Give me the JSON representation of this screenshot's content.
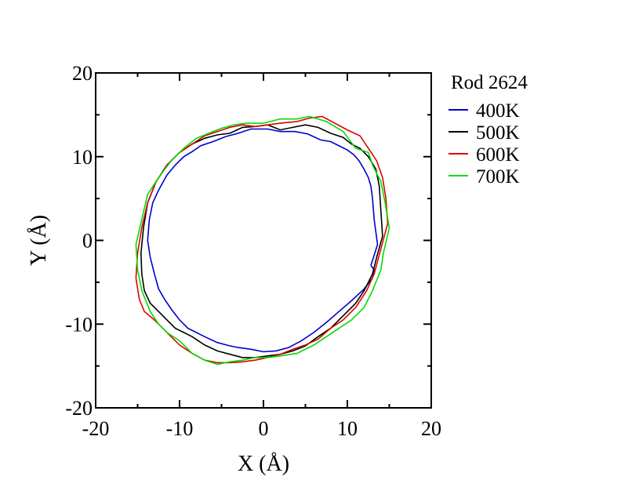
{
  "chart_data": {
    "type": "line",
    "title": "",
    "xlabel": "X (Å)",
    "ylabel": "Y (Å)",
    "xlim": [
      -20,
      20
    ],
    "ylim": [
      -20,
      20
    ],
    "xticks": [
      -20,
      -10,
      0,
      10,
      20
    ],
    "yticks": [
      -20,
      -10,
      0,
      10,
      20
    ],
    "grid": false,
    "legend": {
      "title": "Rod 2624",
      "placement": "outside-right"
    },
    "series": [
      {
        "name": "400K",
        "color": "#0000cc",
        "x": [
          12.8,
          13.6,
          13.2,
          13.0,
          12.8,
          12.5,
          12.0,
          11.4,
          10.8,
          10.0,
          9.0,
          8.0,
          6.8,
          5.3,
          3.8,
          2.0,
          0.5,
          -1.5,
          -3.0,
          -4.5,
          -6.0,
          -7.5,
          -8.5,
          -9.5,
          -10.5,
          -11.5,
          -12.5,
          -13.2,
          -13.6,
          -13.8,
          -13.5,
          -13.0,
          -12.5,
          -11.8,
          -11.0,
          -10.0,
          -9.0,
          -8.0,
          -7.0,
          -5.5,
          -4.0,
          -3.0,
          -1.5,
          0.0,
          1.5,
          3.0,
          4.5,
          6.0,
          7.5,
          9.0,
          10.5,
          12.0,
          13.0,
          13.2,
          12.8
        ],
        "y": [
          -3.0,
          -0.5,
          2.5,
          5.0,
          6.5,
          7.5,
          8.5,
          9.5,
          10.2,
          10.8,
          11.3,
          11.8,
          12.0,
          12.7,
          13.0,
          13.0,
          13.3,
          13.3,
          12.8,
          12.4,
          11.8,
          11.3,
          10.6,
          10.0,
          9.0,
          7.8,
          6.0,
          4.5,
          2.5,
          0.0,
          -2.0,
          -4.0,
          -5.8,
          -7.0,
          -8.2,
          -9.5,
          -10.5,
          -11.0,
          -11.5,
          -12.2,
          -12.6,
          -12.8,
          -13.0,
          -13.3,
          -13.2,
          -12.8,
          -12.0,
          -11.0,
          -9.8,
          -8.5,
          -7.2,
          -5.8,
          -4.5,
          -3.5,
          -3.0
        ],
        "smooth": false
      },
      {
        "name": "500K",
        "color": "#000000",
        "x": [
          13.5,
          14.2,
          14.0,
          13.8,
          13.4,
          12.5,
          11.5,
          10.5,
          9.5,
          8.0,
          6.5,
          5.0,
          3.5,
          2.0,
          0.5,
          -1.0,
          -2.5,
          -4.0,
          -5.5,
          -7.0,
          -8.5,
          -10.0,
          -11.5,
          -12.8,
          -13.8,
          -14.3,
          -14.6,
          -14.5,
          -14.2,
          -13.5,
          -12.5,
          -11.5,
          -10.5,
          -9.5,
          -8.5,
          -7.0,
          -5.5,
          -4.0,
          -2.5,
          -1.0,
          0.5,
          2.0,
          3.5,
          5.0,
          6.5,
          8.0,
          9.5,
          11.0,
          12.0,
          13.0,
          13.5
        ],
        "y": [
          -2.0,
          0.5,
          3.5,
          6.5,
          8.5,
          10.0,
          11.0,
          11.5,
          12.3,
          12.8,
          13.5,
          13.8,
          13.5,
          13.2,
          13.8,
          13.6,
          13.5,
          12.8,
          12.6,
          12.2,
          11.5,
          10.5,
          9.0,
          7.0,
          4.5,
          1.5,
          -1.5,
          -4.0,
          -6.0,
          -7.5,
          -8.5,
          -9.5,
          -10.5,
          -11.0,
          -11.5,
          -12.5,
          -13.2,
          -13.6,
          -14.0,
          -14.0,
          -13.8,
          -13.6,
          -13.2,
          -12.6,
          -11.5,
          -10.5,
          -9.0,
          -7.5,
          -6.0,
          -4.0,
          -2.0
        ],
        "smooth": false
      },
      {
        "name": "600K",
        "color": "#dd0000",
        "x": [
          14.0,
          14.8,
          14.6,
          14.2,
          13.5,
          12.5,
          11.5,
          10.0,
          8.5,
          7.0,
          5.5,
          4.0,
          2.0,
          0.5,
          -1.0,
          -2.5,
          -4.0,
          -5.5,
          -7.0,
          -8.5,
          -10.0,
          -11.5,
          -12.8,
          -13.8,
          -14.5,
          -15.0,
          -15.2,
          -14.8,
          -14.2,
          -13.0,
          -12.0,
          -11.0,
          -10.0,
          -8.5,
          -7.0,
          -5.5,
          -4.0,
          -2.5,
          -1.0,
          0.5,
          2.0,
          3.5,
          5.0,
          6.5,
          8.0,
          9.5,
          11.0,
          12.3,
          13.2,
          14.0
        ],
        "y": [
          -1.0,
          2.0,
          5.0,
          7.5,
          9.5,
          11.0,
          12.5,
          13.2,
          14.0,
          14.8,
          14.6,
          14.2,
          14.0,
          13.8,
          13.6,
          13.8,
          13.5,
          13.0,
          12.5,
          11.5,
          10.5,
          9.0,
          7.0,
          4.5,
          1.5,
          -1.5,
          -4.5,
          -7.0,
          -8.5,
          -9.5,
          -10.5,
          -11.5,
          -12.5,
          -13.5,
          -14.3,
          -14.6,
          -14.6,
          -14.5,
          -14.3,
          -14.0,
          -13.6,
          -13.0,
          -12.5,
          -11.8,
          -10.5,
          -9.5,
          -8.0,
          -6.0,
          -4.0,
          -1.0
        ],
        "smooth": false
      },
      {
        "name": "700K",
        "color": "#00dd00",
        "x": [
          14.3,
          15.0,
          14.5,
          14.0,
          13.0,
          12.5,
          11.0,
          9.5,
          7.5,
          5.5,
          4.0,
          2.0,
          0.0,
          -2.0,
          -3.5,
          -5.0,
          -6.5,
          -8.0,
          -9.5,
          -11.0,
          -12.5,
          -13.8,
          -14.5,
          -15.2,
          -15.0,
          -14.5,
          -13.5,
          -12.5,
          -11.5,
          -10.0,
          -8.5,
          -7.0,
          -5.5,
          -4.0,
          -2.5,
          -1.0,
          0.5,
          2.0,
          4.0,
          6.0,
          7.5,
          9.0,
          10.5,
          12.0,
          13.0,
          14.0,
          14.3
        ],
        "y": [
          -1.5,
          1.5,
          4.5,
          7.0,
          9.0,
          10.5,
          11.0,
          13.0,
          14.2,
          14.8,
          14.5,
          14.5,
          14.0,
          14.0,
          13.8,
          13.4,
          12.8,
          12.2,
          11.0,
          9.5,
          7.5,
          5.5,
          2.5,
          -0.5,
          -3.5,
          -6.0,
          -8.5,
          -10.0,
          -11.0,
          -12.0,
          -13.5,
          -14.3,
          -14.8,
          -14.5,
          -14.3,
          -14.0,
          -14.0,
          -13.8,
          -13.5,
          -12.5,
          -11.5,
          -10.5,
          -9.5,
          -8.0,
          -6.0,
          -3.5,
          -1.5
        ],
        "smooth": false
      }
    ]
  }
}
